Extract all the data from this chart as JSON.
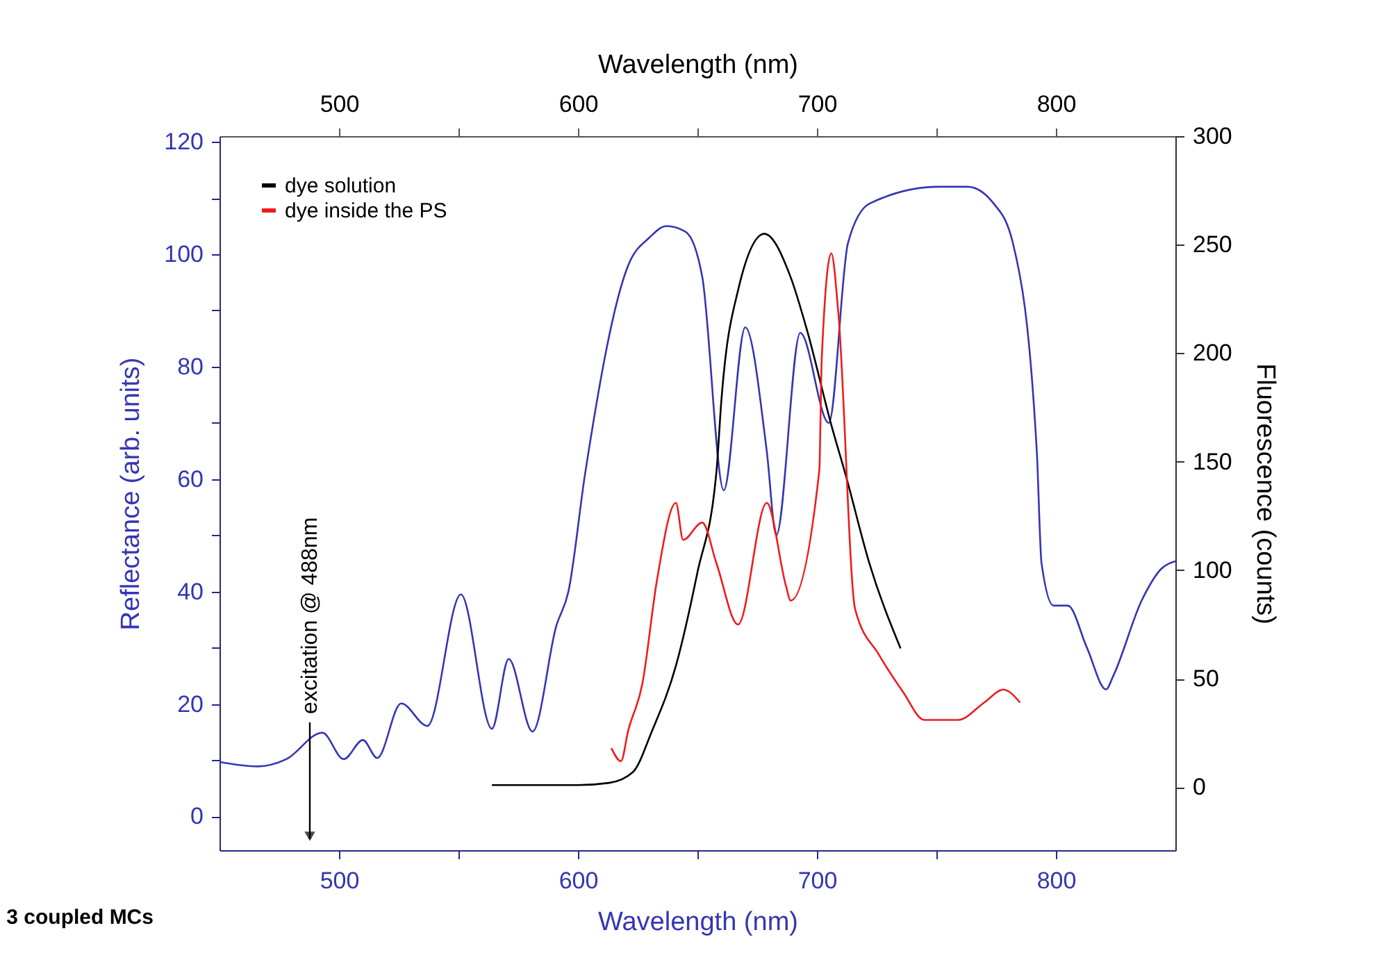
{
  "chart_data": {
    "type": "line",
    "xlabel": "Wavelength (nm)",
    "x2label": "Wavelength (nm)",
    "ylabel": "Reflectance (arb. units)",
    "y2label": "Fluorescence (counts)",
    "xlim": [
      450,
      850
    ],
    "xticks": [
      500,
      {
        "value": 550,
        "label": null
      },
      600,
      {
        "value": 650,
        "label": null
      },
      700,
      {
        "value": 750,
        "label": null
      },
      800
    ],
    "x2lim": [
      450,
      850
    ],
    "x2ticks": [
      500,
      {
        "value": 550,
        "label": null
      },
      600,
      {
        "value": 650,
        "label": null
      },
      700,
      {
        "value": 750,
        "label": null
      },
      800
    ],
    "ylim": [
      -6,
      121
    ],
    "yticks": [
      0,
      {
        "value": 10,
        "label": null
      },
      20,
      {
        "value": 30,
        "label": null
      },
      40,
      {
        "value": 50,
        "label": null
      },
      60,
      {
        "value": 70,
        "label": null
      },
      80,
      {
        "value": 90,
        "label": null
      },
      100,
      {
        "value": 110,
        "label": null
      },
      120
    ],
    "y2lim": [
      -29,
      300
    ],
    "y2ticks": [
      0,
      50,
      100,
      150,
      200,
      250,
      300
    ],
    "legend": "top left",
    "series": [
      {
        "color": "#3535b5",
        "x": [
          450,
          466,
          478,
          493,
          502,
          510,
          516,
          526,
          537,
          551,
          564,
          571,
          581,
          591,
          596,
          603,
          621,
          630,
          637,
          645,
          652,
          661,
          670,
          679,
          683,
          693,
          705,
          713,
          722,
          751,
          763,
          774,
          782,
          792,
          794,
          799,
          805,
          813,
          821,
          824,
          836,
          844,
          850
        ],
        "values": [
          9.7,
          8.9,
          10.2,
          14.9,
          10.2,
          13.6,
          10.4,
          20.1,
          16.1,
          39.5,
          15.6,
          28,
          15.1,
          34,
          40,
          61,
          98,
          103,
          105,
          104,
          96,
          58,
          87,
          65,
          50,
          86,
          70,
          102,
          109,
          112,
          112,
          109,
          102,
          65,
          45,
          37.5,
          37.5,
          30,
          22.6,
          25,
          38.5,
          44,
          45.4
        ]
      },
      {
        "name": "dye solution",
        "color": "#000000",
        "axis": "y2",
        "x": [
          564,
          600,
          613,
          623,
          631,
          641,
          650,
          658,
          660,
          667,
          678,
          689,
          696,
          706,
          712,
          722,
          735
        ],
        "values": [
          1,
          1,
          2,
          7,
          26,
          56,
          99,
          146,
          178,
          229,
          255,
          235,
          210,
          167,
          144,
          103,
          64
        ]
      },
      {
        "name": "dye inside the PS",
        "color": "#ee1c1c",
        "axis": "y2",
        "x": [
          614,
          618,
          621,
          627,
          633,
          641,
          644,
          652,
          658,
          667,
          679,
          687,
          689,
          701,
          702,
          706,
          709,
          716,
          726,
          736,
          745,
          759,
          770,
          778,
          785
        ],
        "values": [
          18,
          12,
          26,
          48,
          95,
          131,
          114,
          122,
          103,
          75,
          131,
          93,
          86,
          146,
          197,
          246,
          218,
          82,
          61,
          44,
          31,
          31,
          39,
          45,
          39
        ]
      }
    ],
    "annotations": [
      "excitation @ 488nm",
      "3 coupled MCs"
    ]
  }
}
